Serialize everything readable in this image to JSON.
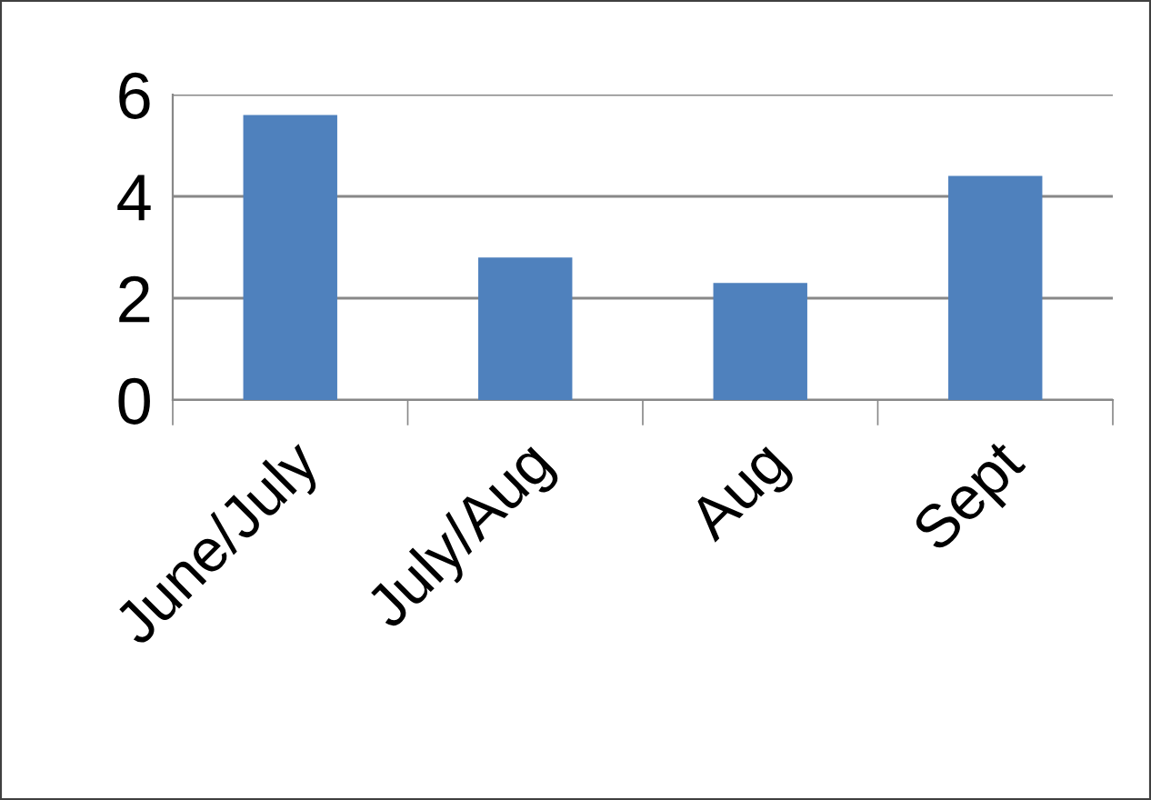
{
  "chart_data": {
    "type": "bar",
    "categories": [
      "June/July",
      "July/Aug",
      "Aug",
      "Sept"
    ],
    "values": [
      5.6,
      2.8,
      2.3,
      4.4
    ],
    "color": "#4f81bd",
    "ylim": [
      0,
      6
    ],
    "yticks": [
      0,
      2,
      4,
      6
    ],
    "grid": "y"
  }
}
